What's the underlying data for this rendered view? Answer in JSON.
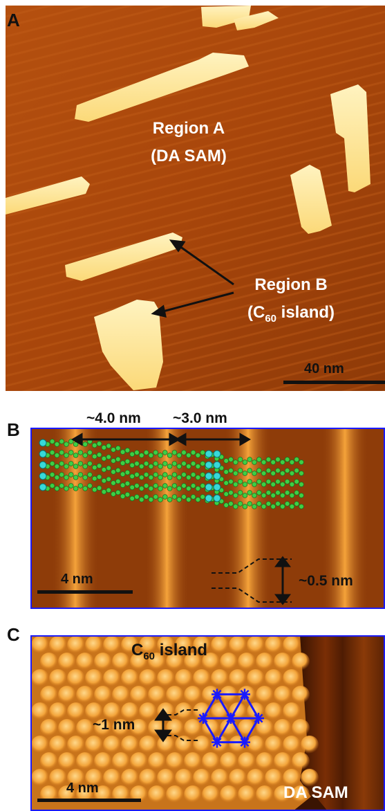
{
  "panels": {
    "a": {
      "letter": "A",
      "region_a_line1": "Region A",
      "region_a_line2": "(DA SAM)",
      "region_b_line1": "Region B",
      "region_b_line2_prefix": "(C",
      "region_b_line2_sub": "60",
      "region_b_line2_suffix": " island)",
      "scale_bar": "40 nm"
    },
    "b": {
      "letter": "B",
      "spacing_1": "~4.0 nm",
      "spacing_2": "~3.0 nm",
      "height": "~0.5 nm",
      "scale_bar": "4 nm"
    },
    "c": {
      "letter": "C",
      "island_prefix": "C",
      "island_sub": "60",
      "island_suffix": " island",
      "spacing": "~1 nm",
      "scale_bar": "4 nm",
      "sam_label": "DA SAM"
    }
  },
  "colors": {
    "frame": "#1a1aff",
    "substrate": "#b04a0c",
    "island": "#ffe9a0",
    "molecule_green": "#3ecf45",
    "molecule_cyan": "#38d8d8"
  }
}
